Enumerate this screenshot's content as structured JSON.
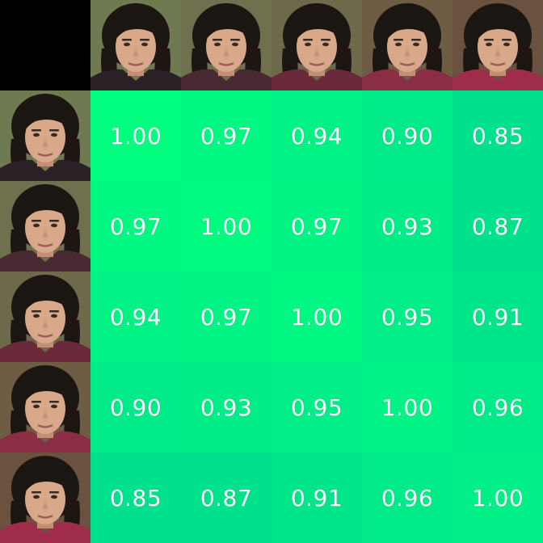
{
  "chart_data": {
    "type": "heatmap",
    "rows": 5,
    "cols": 5,
    "values": [
      [
        "1.00",
        "0.97",
        "0.94",
        "0.90",
        "0.85"
      ],
      [
        "0.97",
        "1.00",
        "0.97",
        "0.93",
        "0.87"
      ],
      [
        "0.94",
        "0.97",
        "1.00",
        "0.95",
        "0.91"
      ],
      [
        "0.90",
        "0.93",
        "0.95",
        "1.00",
        "0.96"
      ],
      [
        "0.85",
        "0.87",
        "0.91",
        "0.96",
        "1.00"
      ]
    ]
  },
  "colors": {
    "corner": "#000000",
    "matrix_high": "#00ff7f",
    "matrix_low": "#00d890",
    "value_text": "#ffffff"
  },
  "thumbnails": [
    {
      "name": "face-image-1",
      "jacket": "#2a2126",
      "bg": "#6f7a52"
    },
    {
      "name": "face-image-2",
      "jacket": "#4a2a32",
      "bg": "#70704e"
    },
    {
      "name": "face-image-3",
      "jacket": "#6a2a3a",
      "bg": "#6c6a4a"
    },
    {
      "name": "face-image-4",
      "jacket": "#8a2e44",
      "bg": "#6e5c44"
    },
    {
      "name": "face-image-5",
      "jacket": "#a02e4a",
      "bg": "#6a5240"
    }
  ]
}
